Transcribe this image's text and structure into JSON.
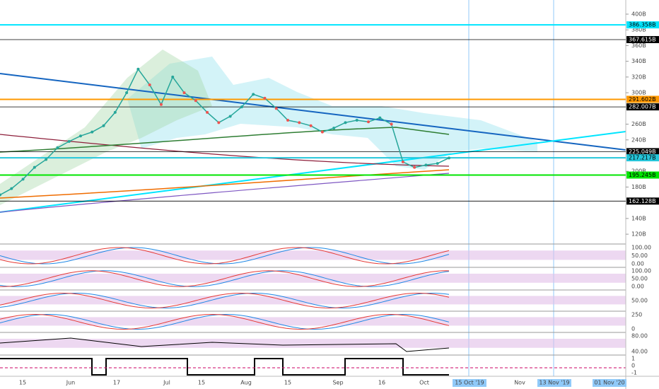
{
  "chart_data": {
    "type": "line",
    "series": [
      {
        "color": "#26a69a",
        "values": [
          170,
          178,
          190,
          205,
          215,
          230,
          238,
          245,
          250,
          258,
          275,
          300,
          330,
          310,
          285,
          320,
          300,
          290,
          275,
          262,
          270,
          282,
          298,
          293,
          280,
          265,
          262,
          258,
          250,
          255,
          262,
          265,
          263,
          268,
          260,
          212,
          205,
          208,
          210,
          217
        ]
      }
    ],
    "ylim": [
      112,
      418
    ],
    "yticks": [
      {
        "value": 120,
        "label": "120B"
      },
      {
        "value": 140,
        "label": "140B"
      },
      {
        "value": 180,
        "label": "180B"
      },
      {
        "value": 200,
        "label": "200B"
      },
      {
        "value": 240,
        "label": "240B"
      },
      {
        "value": 260,
        "label": "260B"
      },
      {
        "value": 300,
        "label": "300B"
      },
      {
        "value": 320,
        "label": "320B"
      },
      {
        "value": 340,
        "label": "340B"
      },
      {
        "value": 360,
        "label": "360B"
      },
      {
        "value": 380,
        "label": "380B"
      },
      {
        "value": 400,
        "label": "400B"
      }
    ],
    "levels": [
      {
        "value": 386.358,
        "label": "386.358B",
        "color": "#00e5ff"
      },
      {
        "value": 367.615,
        "label": "367.615B",
        "color": "#000000"
      },
      {
        "value": 291.602,
        "label": "291.602B",
        "color": "#ff9800"
      },
      {
        "value": 282.007,
        "label": "282.007B",
        "color": "#000000"
      },
      {
        "value": 225.049,
        "label": "225.049B",
        "color": "#000000"
      },
      {
        "value": 217.217,
        "label": "217.217B",
        "color": "#26c6da"
      },
      {
        "value": 195.245,
        "label": "195.245B",
        "color": "#00e600"
      },
      {
        "value": 162.128,
        "label": "162.128B",
        "color": "#000000"
      }
    ],
    "x_labels": [
      "15",
      "Jun",
      "17",
      "Jul",
      "15",
      "Aug",
      "15",
      "Sep",
      "16",
      "Oct",
      "15 Oct '19",
      "Nov",
      "13 Nov '19",
      "01 Nov '20"
    ],
    "indicators": [
      [
        "100.00",
        "50.00",
        "0.00"
      ],
      [
        "100.00",
        "50.00",
        "0.00"
      ],
      [
        "50.00"
      ],
      [
        "250",
        "0"
      ],
      [
        "80.00",
        "40.00"
      ],
      [
        "1",
        "0",
        "-1"
      ]
    ]
  }
}
